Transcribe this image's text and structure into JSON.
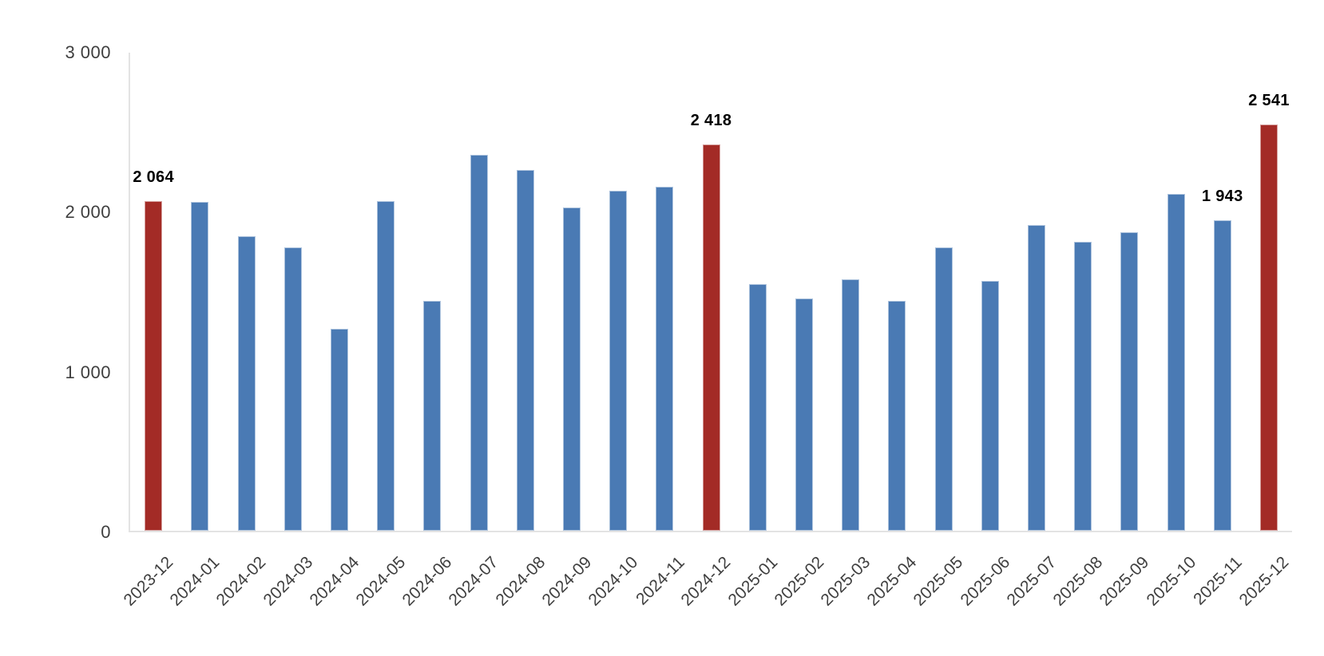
{
  "chart_data": {
    "type": "bar",
    "title": "",
    "xlabel": "",
    "ylabel": "",
    "ylim": [
      0,
      3000
    ],
    "grid": false,
    "legend": false,
    "categories": [
      "2023-12",
      "2024-01",
      "2024-02",
      "2024-03",
      "2024-04",
      "2024-05",
      "2024-06",
      "2024-07",
      "2024-08",
      "2024-09",
      "2024-10",
      "2024-11",
      "2024-12",
      "2025-01",
      "2025-02",
      "2025-03",
      "2025-04",
      "2025-05",
      "2025-06",
      "2025-07",
      "2025-08",
      "2025-09",
      "2025-10",
      "2025-11",
      "2025-12"
    ],
    "values": [
      2064,
      2058,
      1843,
      1773,
      1262,
      2062,
      1440,
      2350,
      2258,
      2023,
      2127,
      2153,
      2418,
      1545,
      1455,
      1573,
      1438,
      1770,
      1565,
      1913,
      1807,
      1865,
      2107,
      1943,
      2541
    ],
    "bar_value_labels": [
      "2 064",
      null,
      null,
      null,
      null,
      null,
      null,
      null,
      null,
      null,
      null,
      null,
      "2 418",
      null,
      null,
      null,
      null,
      null,
      null,
      null,
      null,
      null,
      null,
      "1 943",
      "2 541"
    ],
    "highlighted_indices": [
      0,
      12,
      24
    ],
    "y_ticks": [
      {
        "value": 3000,
        "label": "3 000"
      },
      {
        "value": 2000,
        "label": "2 000"
      },
      {
        "value": 1000,
        "label": "1 000"
      },
      {
        "value": 0,
        "label": "0"
      }
    ],
    "colors": {
      "bar": "#4a7ab4",
      "highlight": "#a32b26",
      "axis": "#e3e3e3",
      "tick_text": "#3f3f3f",
      "value_label_text": "#000000"
    }
  }
}
